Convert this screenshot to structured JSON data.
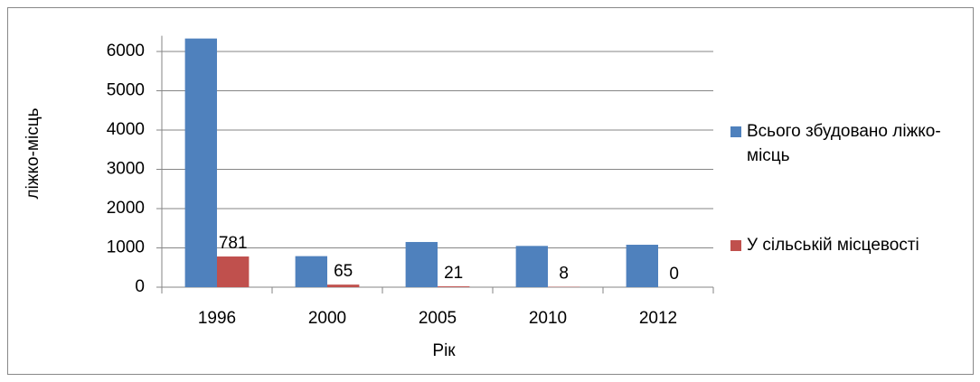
{
  "chart_data": {
    "type": "bar",
    "x_label": "Рік",
    "y_label": "ліжко-місць",
    "categories": [
      "1996",
      "2000",
      "2005",
      "2010",
      "2012"
    ],
    "series": [
      {
        "name": "Всього збудовано ліжко-місць",
        "color": "#4f81bd",
        "values": [
          6330,
          790,
          1150,
          1050,
          1080
        ]
      },
      {
        "name": "У сільській місцевості",
        "color": "#c0504d",
        "values": [
          781,
          65,
          21,
          8,
          0
        ],
        "show_labels": true
      }
    ],
    "ylim": [
      0,
      6400
    ],
    "yticks": [
      0,
      1000,
      2000,
      3000,
      4000,
      5000,
      6000
    ],
    "grid": true,
    "legend": "right"
  }
}
